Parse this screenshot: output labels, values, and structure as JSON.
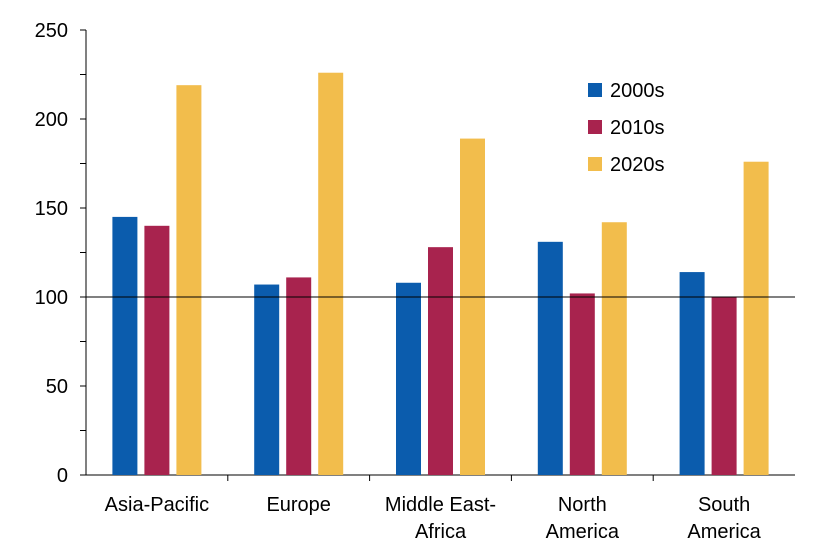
{
  "chart_data": {
    "type": "bar",
    "categories": [
      [
        "Asia-Pacific"
      ],
      [
        "Europe"
      ],
      [
        "Middle East-",
        "Africa"
      ],
      [
        "North",
        "America"
      ],
      [
        "South",
        "America"
      ]
    ],
    "series": [
      {
        "name": "2000s",
        "color": "#0B5CAD",
        "values": [
          145,
          107,
          108,
          131,
          114
        ]
      },
      {
        "name": "2010s",
        "color": "#A8234E",
        "values": [
          140,
          111,
          128,
          102,
          100
        ]
      },
      {
        "name": "2020s",
        "color": "#F2BD4C",
        "values": [
          219,
          226,
          189,
          142,
          176
        ]
      }
    ],
    "ylim": [
      0,
      250
    ],
    "yticks": [
      "0",
      "50",
      "100",
      "150",
      "200",
      "250"
    ],
    "reference_line": 100,
    "legend": [
      "2000s",
      "2010s",
      "2020s"
    ],
    "legend_position": "top-right",
    "title": "",
    "xlabel": "",
    "ylabel": "",
    "grid": false
  }
}
